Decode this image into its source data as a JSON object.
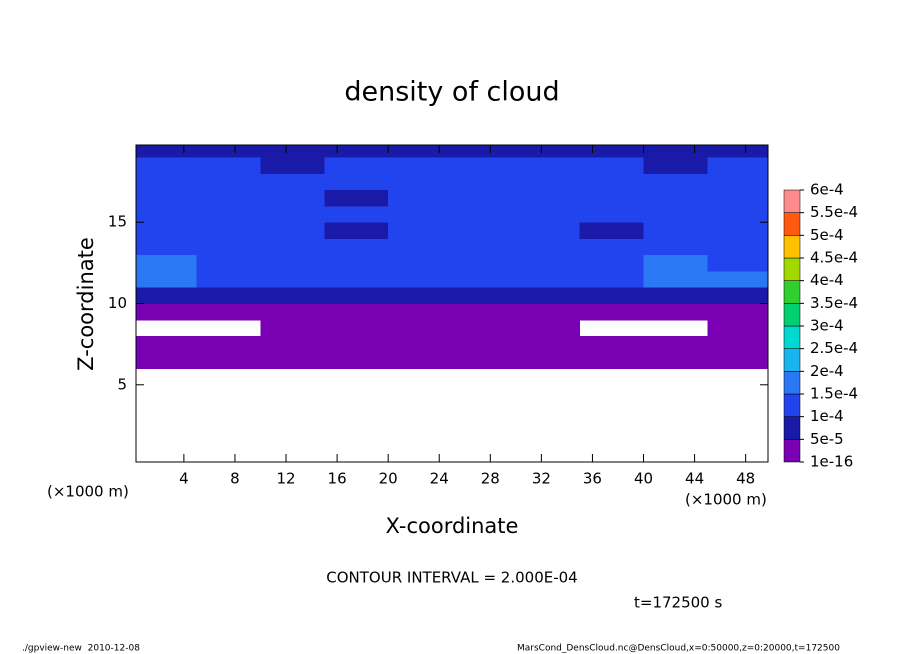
{
  "chart_data": {
    "type": "contour",
    "title": "density of cloud",
    "x_label": "X-coordinate",
    "y_label": "Z-coordinate",
    "x_unit": "(×1000 m)",
    "y_unit": "(×1000 m)",
    "xlim": [
      0.25,
      49.75
    ],
    "ylim": [
      0.25,
      19.75
    ],
    "xticks": [
      4,
      8,
      12,
      16,
      20,
      24,
      28,
      32,
      36,
      40,
      44,
      48
    ],
    "yticks": [
      5,
      10,
      15
    ],
    "x": [
      2.5,
      7.5,
      12.5,
      17.5,
      22.5,
      27.5,
      32.5,
      37.5,
      42.5,
      47.5
    ],
    "y": [
      0.5,
      1.5,
      2.5,
      3.5,
      4.5,
      5.5,
      6.5,
      7.5,
      8.5,
      9.5,
      10.5,
      11.5,
      12.5,
      13.5,
      14.5,
      15.5,
      16.5,
      17.5,
      18.5,
      19.5
    ],
    "z": [
      [
        null,
        null,
        null,
        null,
        null,
        null,
        null,
        null,
        null,
        null
      ],
      [
        null,
        null,
        null,
        null,
        null,
        null,
        null,
        null,
        null,
        null
      ],
      [
        null,
        null,
        null,
        null,
        null,
        null,
        null,
        null,
        null,
        null
      ],
      [
        null,
        null,
        null,
        null,
        null,
        null,
        null,
        null,
        null,
        null
      ],
      [
        null,
        null,
        null,
        null,
        null,
        null,
        null,
        null,
        null,
        null
      ],
      [
        null,
        null,
        null,
        null,
        null,
        null,
        null,
        null,
        null,
        null
      ],
      [
        3e-05,
        3e-05,
        3e-05,
        3e-05,
        3e-05,
        3e-05,
        3e-05,
        3e-05,
        3e-05,
        3e-05
      ],
      [
        3e-05,
        3e-05,
        3e-05,
        3e-05,
        3e-05,
        3e-05,
        3e-05,
        3e-05,
        3e-05,
        3e-05
      ],
      [
        null,
        null,
        3e-05,
        3e-05,
        3e-05,
        3e-05,
        3e-05,
        null,
        null,
        3e-05
      ],
      [
        4e-05,
        4e-05,
        4e-05,
        4e-05,
        4e-05,
        4e-05,
        4e-05,
        4e-05,
        4e-05,
        4e-05
      ],
      [
        7e-05,
        7e-05,
        7e-05,
        7e-05,
        7e-05,
        7e-05,
        7e-05,
        7e-05,
        7e-05,
        7e-05
      ],
      [
        0.00016,
        0.00012,
        0.00012,
        0.00011,
        0.00011,
        0.00011,
        0.00011,
        0.00012,
        0.00016,
        0.00016
      ],
      [
        0.00016,
        0.00013,
        0.00012,
        0.00012,
        0.00011,
        0.00011,
        0.00011,
        0.00012,
        0.00016,
        0.00013
      ],
      [
        0.00013,
        0.00013,
        0.00012,
        0.00012,
        0.00012,
        0.00011,
        0.00011,
        0.00012,
        0.00013,
        0.00012
      ],
      [
        0.00012,
        0.00012,
        0.00012,
        7e-05,
        0.00012,
        0.00012,
        0.00012,
        7e-05,
        0.00012,
        0.00012
      ],
      [
        0.00012,
        0.00012,
        0.00012,
        0.00012,
        0.00012,
        0.00012,
        0.00012,
        0.00012,
        0.00012,
        0.00012
      ],
      [
        0.00011,
        0.00011,
        0.00011,
        7e-05,
        0.00011,
        0.00011,
        0.00011,
        0.00011,
        0.00011,
        0.00011
      ],
      [
        0.00011,
        0.00011,
        0.00011,
        0.00011,
        0.00011,
        0.00011,
        0.00011,
        0.00011,
        0.00011,
        0.00011
      ],
      [
        0.00011,
        0.00011,
        8e-05,
        0.00011,
        0.00011,
        0.00011,
        0.00011,
        0.00011,
        8e-05,
        0.00011
      ],
      [
        8e-05,
        8e-05,
        8e-05,
        8e-05,
        8e-05,
        8e-05,
        8e-05,
        8e-05,
        8e-05,
        8e-05
      ]
    ],
    "colorbar": {
      "levels": [
        1e-16,
        {
          "value": 5e-05,
          "label": "5e-5"
        },
        {
          "value": 0.0001,
          "label": "1e-4"
        },
        {
          "value": 0.00015,
          "label": "1.5e-4"
        },
        {
          "value": 0.0002,
          "label": "2e-4"
        },
        {
          "value": 0.00025,
          "label": "2.5e-4"
        },
        {
          "value": 0.0003,
          "label": "3e-4"
        },
        {
          "value": 0.00035,
          "label": "3.5e-4"
        },
        {
          "value": 0.0004,
          "label": "4e-4"
        },
        {
          "value": 0.00045,
          "label": "4.5e-4"
        },
        {
          "value": 0.0005,
          "label": "5e-4"
        },
        {
          "value": 0.00055,
          "label": "5.5e-4"
        },
        {
          "value": 0.0006,
          "label": "6e-4"
        }
      ],
      "colors": [
        "#7a00b4",
        "#1a1aa8",
        "#2244ee",
        "#2a78f4",
        "#18b4f0",
        "#00d8d0",
        "#00d070",
        "#30d030",
        "#a0d800",
        "#ffc000",
        "#ff5a10",
        "#ff8c8c"
      ]
    },
    "contour_interval": "CONTOUR INTERVAL = 2.000E-04",
    "time_label": "t=172500 s",
    "footer_left": "./gpview-new  2010-12-08",
    "footer_right": "MarsCond_DensCloud.nc@DensCloud,x=0:50000,z=0:20000,t=172500"
  }
}
